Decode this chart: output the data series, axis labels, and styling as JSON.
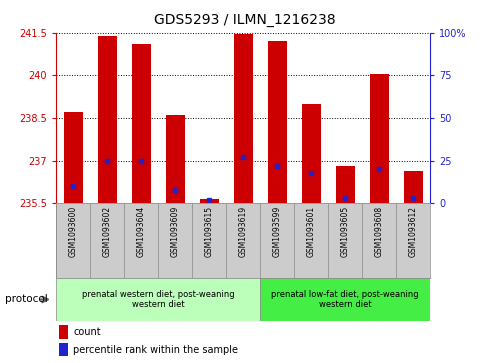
{
  "title": "GDS5293 / ILMN_1216238",
  "samples": [
    "GSM1093600",
    "GSM1093602",
    "GSM1093604",
    "GSM1093609",
    "GSM1093615",
    "GSM1093619",
    "GSM1093599",
    "GSM1093601",
    "GSM1093605",
    "GSM1093608",
    "GSM1093612"
  ],
  "counts": [
    238.7,
    241.4,
    241.1,
    238.6,
    235.65,
    241.45,
    241.2,
    239.0,
    236.8,
    240.05,
    236.65
  ],
  "percentiles": [
    10,
    25,
    25,
    8,
    2,
    27,
    22,
    18,
    3,
    20,
    3
  ],
  "ymin": 235.5,
  "ymax": 241.5,
  "yticks": [
    235.5,
    237.0,
    238.5,
    240.0,
    241.5
  ],
  "ytick_labels": [
    "235.5",
    "237",
    "238.5",
    "240",
    "241.5"
  ],
  "y2min": 0,
  "y2max": 100,
  "y2ticks": [
    0,
    25,
    50,
    75,
    100
  ],
  "y2tick_labels": [
    "0",
    "25",
    "50",
    "75",
    "100%"
  ],
  "bar_color": "#cc0000",
  "percentile_color": "#2222cc",
  "bar_width": 0.55,
  "grid_color": "#000000",
  "protocol_groups": [
    {
      "label": "prenatal western diet, post-weaning\nwestern diet",
      "start": 0,
      "end": 5,
      "color": "#bbffbb"
    },
    {
      "label": "prenatal low-fat diet, post-weaning\nwestern diet",
      "start": 6,
      "end": 10,
      "color": "#44ee44"
    }
  ],
  "protocol_label": "protocol",
  "legend_count": "count",
  "legend_percentile": "percentile rank within the sample",
  "bg_color": "#ffffff",
  "plot_bg_color": "#ffffff",
  "axis_color_left": "#cc0000",
  "axis_color_right": "#2222cc",
  "sample_bg_color": "#cccccc",
  "border_color": "#888888"
}
